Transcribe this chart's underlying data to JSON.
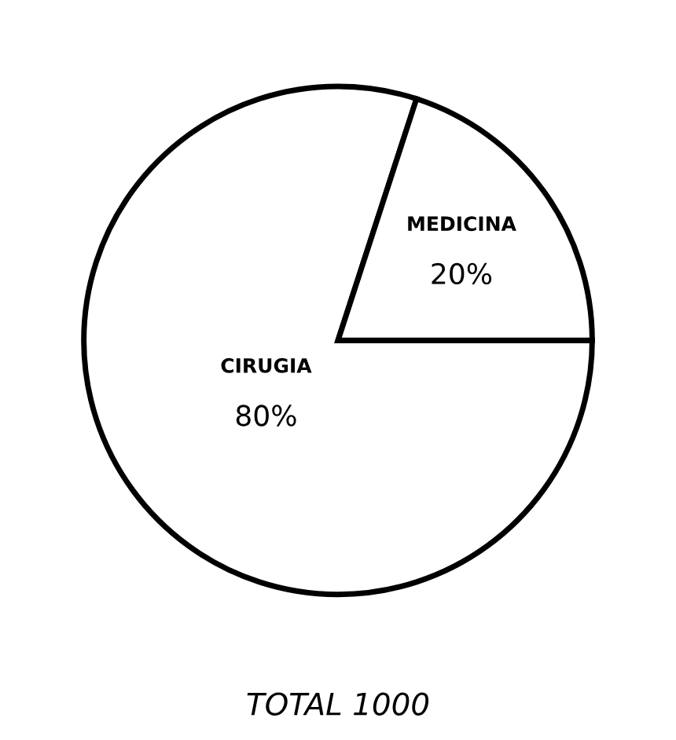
{
  "chart_data": {
    "type": "pie",
    "categories": [
      "CIRUGIA",
      "MEDICINA"
    ],
    "values": [
      80,
      20
    ],
    "colors": [
      "#ffffff",
      "#ffffff"
    ],
    "value_labels": [
      "80%",
      "20%"
    ],
    "annotations": [
      "TOTAL 1000"
    ]
  }
}
